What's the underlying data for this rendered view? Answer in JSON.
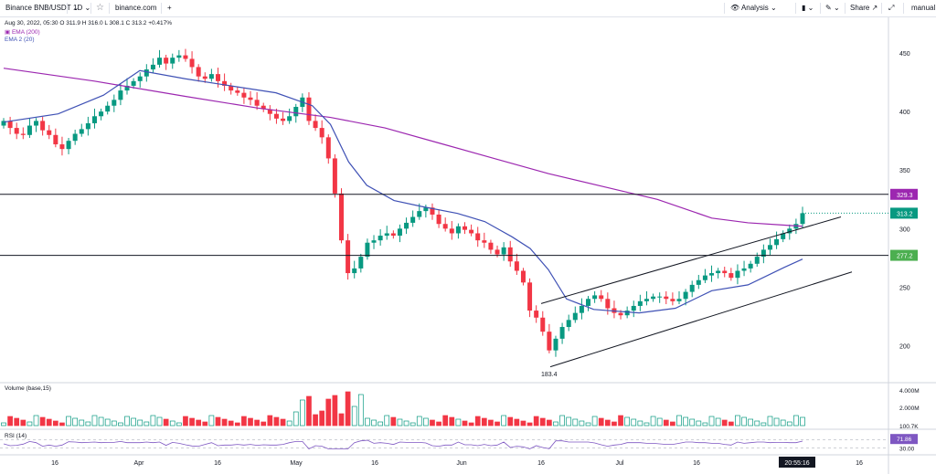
{
  "toolbar": {
    "symbol": "Binance BNB/USDT",
    "interval": "1D",
    "site": "binance.com",
    "analysis": "Analysis",
    "share": "Share",
    "mode": "manual"
  },
  "legend": {
    "ohlc": "Aug 30, 2022, 05:30  O 311.9  H 316.0  L 308.1  C 313.2  +0.417%",
    "ema200": "EMA (200)",
    "ema20": "EMA 2 (20)",
    "volume": "Volume (base,15)",
    "rsi": "RSI (14)"
  },
  "chart_data": [
    {
      "type": "candlestick",
      "x_tick_labels": [
        "16",
        "Apr",
        "16",
        "May",
        "16",
        "Jun",
        "16",
        "Jul",
        "16"
      ],
      "time_label": "20:55:16",
      "y_tick_labels": [
        "450",
        "400",
        "350",
        "300",
        "250",
        "200"
      ],
      "y_ticks": [
        450,
        400,
        350,
        300,
        250,
        200
      ],
      "ylim": [
        170,
        475
      ],
      "closes": [
        392,
        386,
        381,
        380,
        388,
        392,
        384,
        380,
        372,
        368,
        375,
        381,
        385,
        390,
        396,
        400,
        405,
        410,
        418,
        422,
        426,
        430,
        436,
        440,
        446,
        441,
        446,
        448,
        445,
        438,
        430,
        428,
        432,
        426,
        422,
        418,
        416,
        412,
        410,
        405,
        402,
        398,
        394,
        392,
        396,
        404,
        412,
        392,
        386,
        378,
        360,
        330,
        290,
        262,
        266,
        276,
        288,
        290,
        294,
        296,
        294,
        300,
        305,
        310,
        315,
        318,
        312,
        304,
        300,
        296,
        302,
        299,
        296,
        290,
        288,
        282,
        278,
        284,
        272,
        264,
        254,
        230,
        224,
        212,
        196,
        206,
        216,
        222,
        228,
        234,
        240,
        243,
        240,
        232,
        228,
        226,
        230,
        234,
        238,
        240,
        242,
        242,
        240,
        238,
        240,
        246,
        252,
        256,
        260,
        262,
        264,
        262,
        258,
        264,
        266,
        270,
        276,
        282,
        286,
        291,
        296,
        300,
        304,
        313.2
      ],
      "ohlc_last": {
        "o": 311.9,
        "h": 316.0,
        "l": 308.1,
        "c": 313.2,
        "change_pct": "+0.417%"
      },
      "ema200": [
        [
          0,
          437
        ],
        [
          100,
          426
        ],
        [
          200,
          413
        ],
        [
          280,
          403
        ],
        [
          360,
          395
        ],
        [
          420,
          386
        ],
        [
          480,
          373
        ],
        [
          540,
          360
        ],
        [
          600,
          347
        ],
        [
          660,
          336
        ],
        [
          720,
          325
        ],
        [
          780,
          309
        ],
        [
          820,
          305
        ],
        [
          860,
          303
        ],
        [
          880,
          302
        ]
      ],
      "ema20": [
        [
          0,
          391
        ],
        [
          60,
          398
        ],
        [
          110,
          414
        ],
        [
          150,
          435
        ],
        [
          200,
          428
        ],
        [
          250,
          422
        ],
        [
          300,
          416
        ],
        [
          340,
          405
        ],
        [
          360,
          389
        ],
        [
          380,
          357
        ],
        [
          400,
          337
        ],
        [
          430,
          324
        ],
        [
          460,
          319
        ],
        [
          500,
          313
        ],
        [
          530,
          306
        ],
        [
          560,
          293
        ],
        [
          580,
          283
        ],
        [
          600,
          265
        ],
        [
          620,
          240
        ],
        [
          650,
          231
        ],
        [
          700,
          228
        ],
        [
          740,
          232
        ],
        [
          780,
          247
        ],
        [
          820,
          252
        ],
        [
          860,
          267
        ],
        [
          880,
          274
        ]
      ],
      "hlines": [
        {
          "value": 329.3,
          "label": "329.3"
        },
        {
          "value": 277.2,
          "label": "277.2"
        }
      ],
      "last_price": {
        "value": 313.2,
        "label": "313.2"
      },
      "annotations": [
        {
          "text": "183.4",
          "value": 183.4
        }
      ],
      "channel": [
        [
          [
            592,
            236
          ],
          [
            920,
            310
          ]
        ],
        [
          [
            602,
            182
          ],
          [
            932,
            263
          ]
        ]
      ]
    },
    {
      "type": "bar",
      "name": "Volume",
      "y_tick_labels": [
        "4.000M",
        "2.000M",
        "100.7K"
      ]
    },
    {
      "type": "line",
      "name": "RSI",
      "y_tick_labels": [
        "71.86",
        "30.00"
      ]
    }
  ],
  "colors": {
    "up": "#089981",
    "down": "#f23645",
    "ema200": "#9c27b0",
    "ema20": "#3f51b5",
    "hline": "#131722"
  }
}
